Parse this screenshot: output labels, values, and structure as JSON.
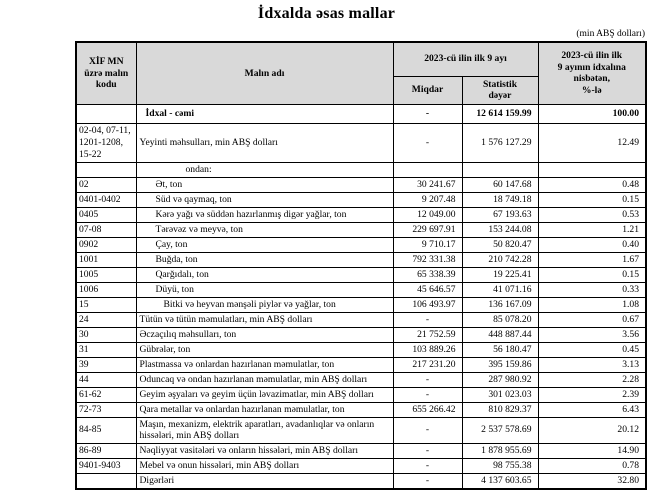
{
  "title": "İdxalda əsas mallar",
  "unit_note": "(min ABŞ dolları)",
  "table": {
    "header": {
      "code": "XİF MN\nüzrə malın\nkodu",
      "name": "Malın adı",
      "period_group": "2023-cü ilin ilk 9 ayı",
      "quantity": "Miqdar",
      "value": "Statistik\ndəyər",
      "share": "2023-cü ilin ilk\n9 ayının idxalına\nnisbətən,\n%-lə"
    },
    "rows": [
      {
        "code": "",
        "name": "İdxal - cəmi",
        "quantity": "-",
        "value": "12 614 159.99",
        "share": "100.00"
      },
      {
        "code": "02-04, 07-11, 1201-1208, 15-22",
        "name": "Yeyinti məhsulları, min ABŞ dolları",
        "quantity": "-",
        "value": "1 576 127.29",
        "share": "12.49"
      },
      {
        "code": "",
        "name": "ondan:",
        "quantity": "",
        "value": "",
        "share": ""
      },
      {
        "code": "02",
        "name": "Ət, ton",
        "quantity": "30 241.67",
        "value": "60 147.68",
        "share": "0.48"
      },
      {
        "code": "0401-0402",
        "name": "Süd və qaymaq, ton",
        "quantity": "9 207.48",
        "value": "18 749.18",
        "share": "0.15"
      },
      {
        "code": "0405",
        "name": "Kərə yağı və süddən hazırlanmış digər yağlar, ton",
        "quantity": "12 049.00",
        "value": "67 193.63",
        "share": "0.53"
      },
      {
        "code": "07-08",
        "name": "Tərəvəz və meyvə, ton",
        "quantity": "229 697.91",
        "value": "153 244.08",
        "share": "1.21"
      },
      {
        "code": "0902",
        "name": "Çay, ton",
        "quantity": "9 710.17",
        "value": "50 820.47",
        "share": "0.40"
      },
      {
        "code": "1001",
        "name": "Buğda, ton",
        "quantity": "792 331.38",
        "value": "210 742.28",
        "share": "1.67"
      },
      {
        "code": "1005",
        "name": "Qarğıdalı, ton",
        "quantity": "65 338.39",
        "value": "19 225.41",
        "share": "0.15"
      },
      {
        "code": "1006",
        "name": "Düyü, ton",
        "quantity": "45 646.57",
        "value": "41 071.16",
        "share": "0.33"
      },
      {
        "code": "15",
        "name": "Bitki və heyvan mənşəli piylər və yağlar, ton",
        "quantity": "106 493.97",
        "value": "136 167.09",
        "share": "1.08"
      },
      {
        "code": "24",
        "name": "Tütün və tütün məmulatları, min ABŞ dolları",
        "quantity": "-",
        "value": "85 078.20",
        "share": "0.67"
      },
      {
        "code": "30",
        "name": "Əczaçılıq məhsulları, ton",
        "quantity": "21 752.59",
        "value": "448 887.44",
        "share": "3.56"
      },
      {
        "code": "31",
        "name": "Gübrələr, ton",
        "quantity": "103 889.26",
        "value": "56 180.47",
        "share": "0.45"
      },
      {
        "code": "39",
        "name": "Plastmassa və onlardan hazırlanan məmulatlar, ton",
        "quantity": "217 231.20",
        "value": "395 159.86",
        "share": "3.13"
      },
      {
        "code": "44",
        "name": "Oduncaq və ondan hazırlanan məmulatlar, min ABŞ dolları",
        "quantity": "-",
        "value": "287 980.92",
        "share": "2.28"
      },
      {
        "code": "61-62",
        "name": "Geyim əşyaları və geyim üçün ləvazimatlar, min ABŞ dolları",
        "quantity": "-",
        "value": "301 023.03",
        "share": "2.39"
      },
      {
        "code": "72-73",
        "name": "Qara metallar və onlardan hazırlanan məmulatlar, ton",
        "quantity": "655 266.42",
        "value": "810 829.37",
        "share": "6.43"
      },
      {
        "code": "84-85",
        "name": "Maşın, mexanizm, elektrik aparatları, avadanlıqlar və onların hissələri, min ABŞ dolları",
        "quantity": "-",
        "value": "2 537 578.69",
        "share": "20.12"
      },
      {
        "code": "86-89",
        "name": "Nəqliyyat vasitələri və onların hissələri, min ABŞ dolları",
        "quantity": "-",
        "value": "1 878 955.69",
        "share": "14.90"
      },
      {
        "code": "9401-9403",
        "name": "Mebel və onun hissələri, min ABŞ dolları",
        "quantity": "-",
        "value": "98 755.38",
        "share": "0.78"
      },
      {
        "code": "",
        "name": "Digərləri",
        "quantity": "-",
        "value": "4 137 603.65",
        "share": "32.80"
      }
    ]
  }
}
